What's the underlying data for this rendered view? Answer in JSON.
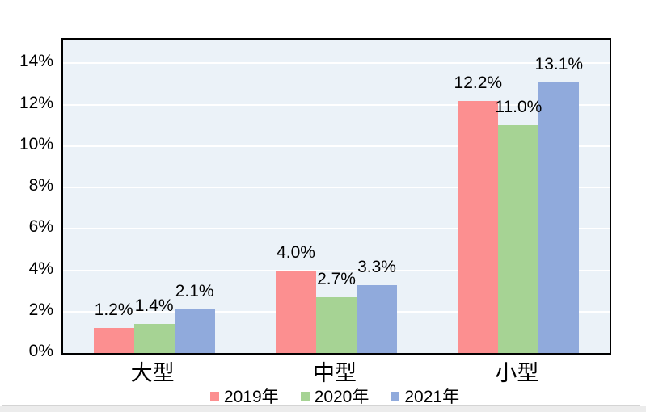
{
  "chart": {
    "background_color": "#FFFFFF",
    "plot_background_color": "#EBF2F8",
    "gridline_color": "#FFFFFF",
    "plot_border_color": "#000000",
    "frame_border_color": "#D4D4D4"
  },
  "chart_data": {
    "type": "bar",
    "title": "",
    "xlabel": "",
    "ylabel": "",
    "categories": [
      "大型",
      "中型",
      "小型"
    ],
    "series": [
      {
        "name": "2019年",
        "color": "#FC8F90",
        "values": [
          1.2,
          4.0,
          12.2
        ],
        "data_labels": [
          "1.2%",
          "4.0%",
          "12.2%"
        ]
      },
      {
        "name": "2020年",
        "color": "#A6D394",
        "values": [
          1.4,
          2.7,
          11.0
        ],
        "data_labels": [
          "1.4%",
          "2.7%",
          "11.0%"
        ]
      },
      {
        "name": "2021年",
        "color": "#90AADC",
        "values": [
          2.1,
          3.3,
          13.1
        ],
        "data_labels": [
          "2.1%",
          "3.3%",
          "13.1%"
        ]
      }
    ],
    "y_axis": {
      "tick_labels": [
        "0%",
        "2%",
        "4%",
        "6%",
        "8%",
        "10%",
        "12%",
        "14%"
      ],
      "min": 0,
      "max": 15.15,
      "major_unit": 2,
      "format": "percent"
    },
    "legend": {
      "position": "bottom",
      "entries": [
        "2019年",
        "2020年",
        "2021年"
      ]
    },
    "grid": true
  }
}
